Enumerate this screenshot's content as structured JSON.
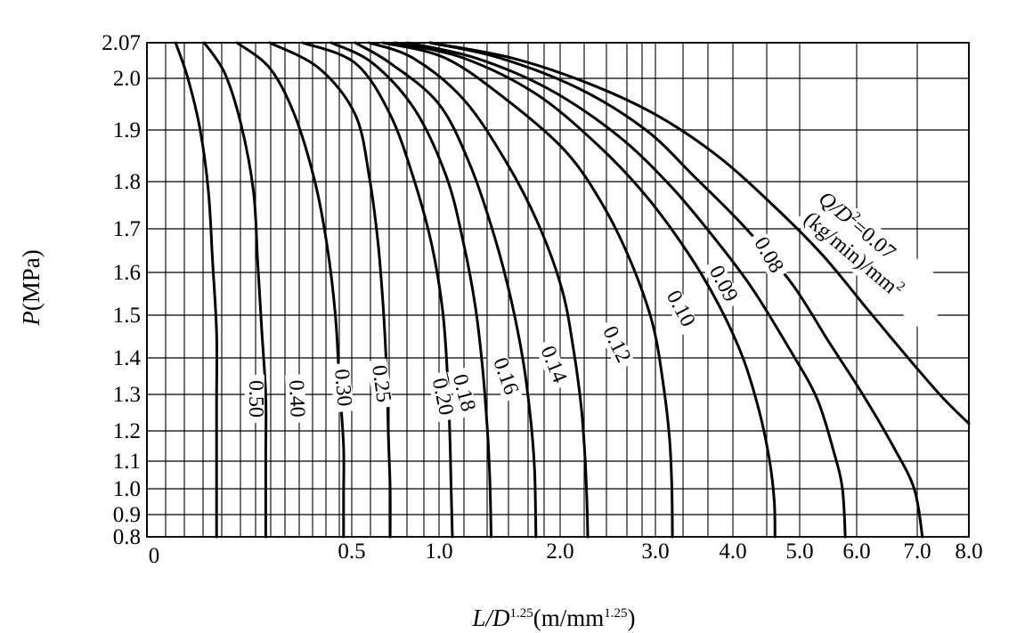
{
  "chart_data": {
    "type": "line",
    "title": "",
    "xlabel": {
      "main": "L/D",
      "exp": "1.25",
      "unit_open": "(m/mm",
      "unit_exp": "1.25",
      "unit_close": ")"
    },
    "ylabel": {
      "main": "P",
      "unit": "(MPa)"
    },
    "xlim": [
      0,
      8.0
    ],
    "ylim": [
      0.8,
      2.07
    ],
    "x_tick_labels": [
      {
        "x": 0,
        "label": "0"
      },
      {
        "x": 0.5,
        "label": "0.5"
      },
      {
        "x": 1.0,
        "label": "1.0"
      },
      {
        "x": 2.0,
        "label": "2.0"
      },
      {
        "x": 3.0,
        "label": "3.0"
      },
      {
        "x": 4.0,
        "label": "4.0"
      },
      {
        "x": 5.0,
        "label": "5.0"
      },
      {
        "x": 6.0,
        "label": "6.0"
      },
      {
        "x": 7.0,
        "label": "7.0"
      },
      {
        "x": 8.0,
        "label": "8.0"
      }
    ],
    "y_tick_labels": [
      {
        "y": 2.07,
        "label": "2.07"
      },
      {
        "y": 2.0,
        "label": "2.0"
      },
      {
        "y": 1.9,
        "label": "1.9"
      },
      {
        "y": 1.8,
        "label": "1.8"
      },
      {
        "y": 1.7,
        "label": "1.7"
      },
      {
        "y": 1.6,
        "label": "1.6"
      },
      {
        "y": 1.5,
        "label": "1.5"
      },
      {
        "y": 1.4,
        "label": "1.4"
      },
      {
        "y": 1.3,
        "label": "1.3"
      },
      {
        "y": 1.2,
        "label": "1.2"
      },
      {
        "y": 1.1,
        "label": "1.1"
      },
      {
        "y": 1.0,
        "label": "1.0"
      },
      {
        "y": 0.9,
        "label": "0.9"
      },
      {
        "y": 0.8,
        "label": "0.8"
      }
    ],
    "grid": true,
    "series_label_prefix": {
      "line1_a": "Q/D",
      "line1_sup": "2",
      "line1_b": "=0.07",
      "line2_a": "(kg/min)/mm",
      "line2_sup": "2"
    },
    "series": [
      {
        "name": "0.07",
        "points": [
          [
            0.95,
            2.07
          ],
          [
            1.6,
            2.04
          ],
          [
            2.3,
            1.99
          ],
          [
            3.0,
            1.93
          ],
          [
            3.8,
            1.85
          ],
          [
            4.6,
            1.75
          ],
          [
            5.4,
            1.64
          ],
          [
            6.2,
            1.51
          ],
          [
            6.9,
            1.39
          ],
          [
            7.5,
            1.29
          ],
          [
            8.0,
            1.22
          ]
        ]
      },
      {
        "name": "0.08",
        "points": [
          [
            0.95,
            2.07
          ],
          [
            1.5,
            2.04
          ],
          [
            2.2,
            1.98
          ],
          [
            2.9,
            1.9
          ],
          [
            3.5,
            1.81
          ],
          [
            4.2,
            1.7
          ],
          [
            4.9,
            1.57
          ],
          [
            5.5,
            1.44
          ],
          [
            6.1,
            1.3
          ],
          [
            6.6,
            1.15
          ],
          [
            6.95,
            1.0
          ],
          [
            7.1,
            0.8
          ]
        ]
      },
      {
        "name": "0.09",
        "points": [
          [
            0.82,
            2.07
          ],
          [
            1.3,
            2.04
          ],
          [
            1.9,
            1.98
          ],
          [
            2.6,
            1.89
          ],
          [
            3.2,
            1.79
          ],
          [
            3.8,
            1.67
          ],
          [
            4.3,
            1.56
          ],
          [
            4.85,
            1.42
          ],
          [
            5.3,
            1.29
          ],
          [
            5.6,
            1.13
          ],
          [
            5.75,
            1.0
          ],
          [
            5.8,
            0.8
          ]
        ]
      },
      {
        "name": "0.10",
        "points": [
          [
            0.75,
            2.07
          ],
          [
            1.2,
            2.04
          ],
          [
            1.8,
            1.97
          ],
          [
            2.4,
            1.87
          ],
          [
            2.9,
            1.77
          ],
          [
            3.4,
            1.65
          ],
          [
            3.8,
            1.53
          ],
          [
            4.15,
            1.4
          ],
          [
            4.4,
            1.25
          ],
          [
            4.55,
            1.1
          ],
          [
            4.62,
            0.95
          ],
          [
            4.63,
            0.8
          ]
        ]
      },
      {
        "name": "0.12",
        "points": [
          [
            0.68,
            2.07
          ],
          [
            1.05,
            2.04
          ],
          [
            1.55,
            1.96
          ],
          [
            2.05,
            1.86
          ],
          [
            2.45,
            1.75
          ],
          [
            2.75,
            1.62
          ],
          [
            2.97,
            1.48
          ],
          [
            3.1,
            1.33
          ],
          [
            3.18,
            1.18
          ],
          [
            3.21,
            1.02
          ],
          [
            3.22,
            0.8
          ]
        ]
      },
      {
        "name": "0.14",
        "points": [
          [
            0.6,
            2.07
          ],
          [
            0.85,
            2.04
          ],
          [
            1.2,
            1.96
          ],
          [
            1.55,
            1.84
          ],
          [
            1.82,
            1.71
          ],
          [
            2.02,
            1.56
          ],
          [
            2.14,
            1.42
          ],
          [
            2.22,
            1.27
          ],
          [
            2.26,
            1.12
          ],
          [
            2.28,
            0.96
          ],
          [
            2.29,
            0.8
          ]
        ]
      },
      {
        "name": "0.16",
        "points": [
          [
            0.52,
            2.07
          ],
          [
            0.72,
            2.03
          ],
          [
            1.0,
            1.95
          ],
          [
            1.26,
            1.83
          ],
          [
            1.46,
            1.68
          ],
          [
            1.6,
            1.53
          ],
          [
            1.7,
            1.38
          ],
          [
            1.76,
            1.22
          ],
          [
            1.79,
            1.06
          ],
          [
            1.8,
            0.8
          ]
        ]
      },
      {
        "name": "0.18",
        "points": [
          [
            0.45,
            2.07
          ],
          [
            0.62,
            2.03
          ],
          [
            0.86,
            1.94
          ],
          [
            1.06,
            1.81
          ],
          [
            1.2,
            1.67
          ],
          [
            1.3,
            1.52
          ],
          [
            1.36,
            1.37
          ],
          [
            1.4,
            1.2
          ],
          [
            1.42,
            1.03
          ],
          [
            1.43,
            0.8
          ]
        ]
      },
      {
        "name": "0.20",
        "points": [
          [
            0.38,
            2.07
          ],
          [
            0.52,
            2.03
          ],
          [
            0.72,
            1.93
          ],
          [
            0.86,
            1.8
          ],
          [
            0.96,
            1.66
          ],
          [
            1.03,
            1.51
          ],
          [
            1.07,
            1.35
          ],
          [
            1.09,
            1.18
          ],
          [
            1.1,
            1.0
          ],
          [
            1.11,
            0.8
          ]
        ]
      },
      {
        "name": "0.25",
        "points": [
          [
            0.3,
            2.07
          ],
          [
            0.42,
            2.02
          ],
          [
            0.52,
            1.93
          ],
          [
            0.6,
            1.81
          ],
          [
            0.65,
            1.67
          ],
          [
            0.68,
            1.52
          ],
          [
            0.7,
            1.36
          ],
          [
            0.71,
            1.18
          ],
          [
            0.72,
            1.0
          ],
          [
            0.72,
            0.8
          ]
        ]
      },
      {
        "name": "0.30",
        "points": [
          [
            0.22,
            2.07
          ],
          [
            0.3,
            2.02
          ],
          [
            0.36,
            1.93
          ],
          [
            0.41,
            1.8
          ],
          [
            0.44,
            1.66
          ],
          [
            0.46,
            1.5
          ],
          [
            0.47,
            1.33
          ],
          [
            0.48,
            1.15
          ],
          [
            0.48,
            0.97
          ],
          [
            0.48,
            0.8
          ]
        ]
      },
      {
        "name": "0.40",
        "points": [
          [
            0.14,
            2.07
          ],
          [
            0.19,
            2.01
          ],
          [
            0.23,
            1.91
          ],
          [
            0.26,
            1.78
          ],
          [
            0.27,
            1.63
          ],
          [
            0.28,
            1.47
          ],
          [
            0.29,
            1.3
          ],
          [
            0.29,
            1.12
          ],
          [
            0.29,
            0.95
          ],
          [
            0.29,
            0.8
          ]
        ]
      },
      {
        "name": "0.50",
        "points": [
          [
            0.07,
            2.07
          ],
          [
            0.1,
            2.0
          ],
          [
            0.13,
            1.9
          ],
          [
            0.15,
            1.78
          ],
          [
            0.16,
            1.63
          ],
          [
            0.17,
            1.46
          ],
          [
            0.17,
            1.28
          ],
          [
            0.17,
            1.1
          ],
          [
            0.17,
            0.93
          ],
          [
            0.17,
            0.8
          ]
        ]
      }
    ]
  }
}
